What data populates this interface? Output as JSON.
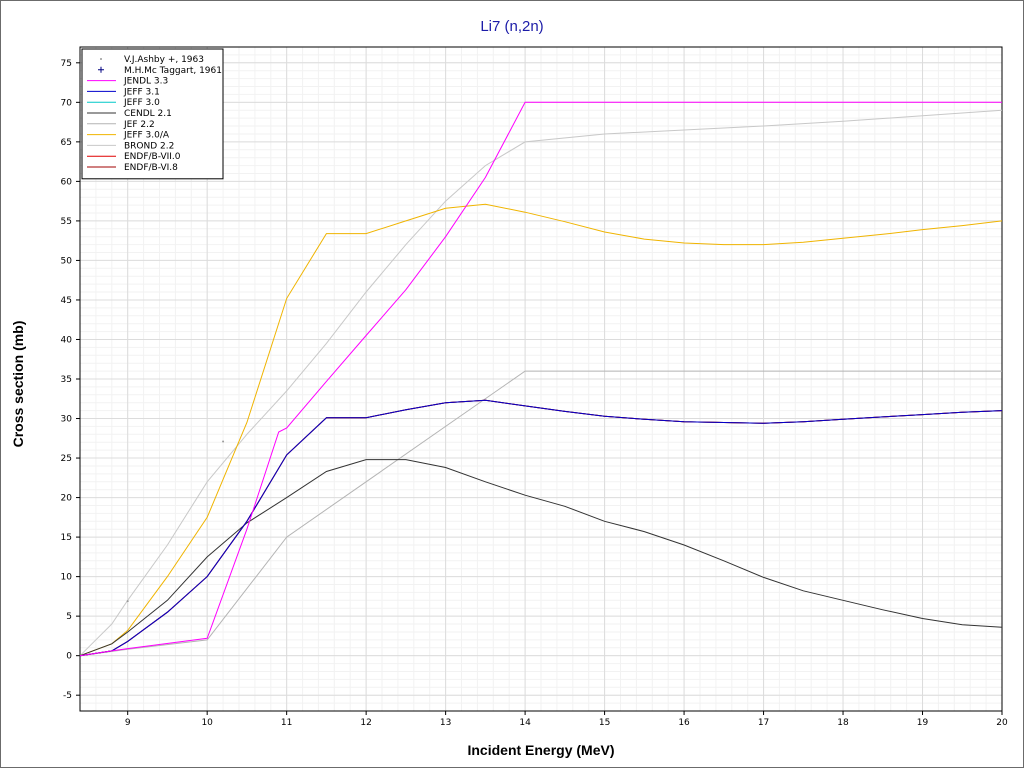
{
  "chart_data": {
    "type": "line",
    "title": "Li7 (n,2n)",
    "xlabel": "Incident Energy (MeV)",
    "ylabel": "Cross section (mb)",
    "xlim": [
      8.4,
      20
    ],
    "ylim": [
      -7,
      77
    ],
    "x_ticks": [
      9,
      10,
      11,
      12,
      13,
      14,
      15,
      16,
      17,
      18,
      19,
      20
    ],
    "y_ticks": [
      -5,
      0,
      5,
      10,
      15,
      20,
      25,
      30,
      35,
      40,
      45,
      50,
      55,
      60,
      65,
      70,
      75
    ],
    "grid": true,
    "legend_position": "top-left",
    "experimental": [
      {
        "name": "V.J.Ashby +, 1963",
        "marker": "dot",
        "color": "#999999",
        "points": [
          [
            9.0,
            6.9
          ],
          [
            10.2,
            27.1
          ]
        ]
      },
      {
        "name": "M.H.Mc Taggart, 1961",
        "marker": "plus",
        "color": "#000080",
        "points": []
      }
    ],
    "series": [
      {
        "name": "JENDL 3.3",
        "color": "#ff00ff",
        "x": [
          8.4,
          8.8,
          9.0,
          10.0,
          10.5,
          10.9,
          11.0,
          11.5,
          12.0,
          12.5,
          13.0,
          13.5,
          14.0,
          20.0
        ],
        "y": [
          0,
          0.6,
          0.9,
          2.2,
          16.0,
          28.3,
          28.8,
          34.7,
          40.5,
          46.3,
          53.0,
          60.5,
          70.0,
          70.0
        ]
      },
      {
        "name": "JEFF 3.1",
        "color": "#0000cc",
        "x": [
          8.4,
          8.8,
          9.0,
          9.5,
          10.0,
          10.5,
          11.0,
          11.5,
          12.0,
          12.5,
          13.0,
          13.5,
          14.0,
          14.5,
          15.0,
          15.5,
          16.0,
          16.5,
          17.0,
          17.5,
          18.0,
          18.5,
          19.0,
          19.5,
          20.0
        ],
        "y": [
          0,
          0.6,
          1.8,
          5.5,
          10.0,
          17.0,
          25.4,
          30.1,
          30.1,
          31.1,
          32.0,
          32.3,
          31.6,
          30.9,
          30.3,
          29.9,
          29.6,
          29.5,
          29.4,
          29.6,
          29.9,
          30.2,
          30.5,
          30.8,
          31.0
        ]
      },
      {
        "name": "JEFF 3.0",
        "color": "#00c8c8",
        "x": [
          8.4,
          8.8,
          9.0,
          9.5,
          10.0,
          10.5,
          11.0,
          11.5,
          12.0,
          12.5,
          13.0,
          13.5,
          14.0,
          14.5,
          15.0,
          15.5,
          16.0,
          16.5,
          17.0,
          17.5,
          18.0,
          18.5,
          19.0,
          19.5,
          20.0
        ],
        "y": [
          0,
          0.6,
          1.8,
          5.5,
          10.0,
          17.0,
          25.4,
          30.1,
          30.1,
          31.1,
          32.0,
          32.3,
          31.6,
          30.9,
          30.3,
          29.9,
          29.6,
          29.5,
          29.4,
          29.6,
          29.9,
          30.2,
          30.5,
          30.8,
          31.0
        ]
      },
      {
        "name": "CENDL 2.1",
        "color": "#333333",
        "x": [
          8.4,
          8.8,
          9.0,
          9.5,
          10.0,
          10.5,
          11.0,
          11.5,
          12.0,
          12.5,
          13.0,
          13.5,
          14.0,
          14.5,
          15.0,
          15.5,
          16.0,
          16.5,
          17.0,
          17.5,
          18.0,
          18.5,
          19.0,
          19.5,
          20.0
        ],
        "y": [
          0,
          1.5,
          3.0,
          7.0,
          12.5,
          16.8,
          20.0,
          23.3,
          24.8,
          24.8,
          23.8,
          22.0,
          20.3,
          18.9,
          17.0,
          15.7,
          14.0,
          12.0,
          9.9,
          8.2,
          7.0,
          5.8,
          4.7,
          3.9,
          3.6
        ]
      },
      {
        "name": "JEF 2.2",
        "color": "#b4b4b4",
        "x": [
          8.4,
          9.0,
          10.0,
          11.0,
          12.0,
          13.0,
          14.0,
          15.0,
          20.0
        ],
        "y": [
          0,
          0.8,
          2.0,
          15.0,
          22.0,
          29.0,
          36.0,
          36.0,
          36.0
        ]
      },
      {
        "name": "JEFF 3.0/A",
        "color": "#f0b400",
        "x": [
          8.4,
          8.8,
          9.0,
          9.5,
          10.0,
          10.5,
          11.0,
          11.5,
          12.0,
          12.5,
          13.0,
          13.5,
          14.0,
          14.5,
          15.0,
          15.5,
          16.0,
          16.5,
          17.0,
          17.5,
          18.0,
          18.5,
          19.0,
          19.5,
          20.0
        ],
        "y": [
          0,
          1.5,
          3.2,
          10.0,
          17.5,
          29.5,
          45.2,
          53.4,
          53.4,
          55.0,
          56.6,
          57.1,
          56.1,
          54.9,
          53.6,
          52.7,
          52.2,
          52.0,
          52.0,
          52.3,
          52.8,
          53.3,
          53.9,
          54.4,
          55.0
        ]
      },
      {
        "name": "BROND 2.2",
        "color": "#c8c8c8",
        "x": [
          8.4,
          8.8,
          9.0,
          9.5,
          10.0,
          10.5,
          11.0,
          11.5,
          12.0,
          12.5,
          13.0,
          13.5,
          14.0,
          15.0,
          16.0,
          17.0,
          18.0,
          19.0,
          20.0
        ],
        "y": [
          0,
          4.0,
          7.0,
          14.0,
          22.0,
          28.0,
          33.5,
          39.5,
          46.0,
          52.0,
          57.5,
          62.0,
          65.0,
          66.0,
          66.5,
          67.0,
          67.6,
          68.3,
          69.0
        ]
      },
      {
        "name": "ENDF/B-VII.0",
        "color": "#e00000",
        "x": [
          8.4,
          8.8,
          9.0,
          9.5,
          10.0,
          10.5,
          11.0,
          11.5,
          12.0,
          12.5,
          13.0,
          13.5,
          14.0,
          14.5,
          15.0,
          15.5,
          16.0,
          16.5,
          17.0,
          17.5,
          18.0,
          18.5,
          19.0,
          19.5,
          20.0
        ],
        "y": [
          0,
          0.6,
          1.8,
          5.5,
          10.0,
          17.0,
          25.4,
          30.1,
          30.1,
          31.1,
          32.0,
          32.3,
          31.6,
          30.9,
          30.3,
          29.9,
          29.6,
          29.5,
          29.4,
          29.6,
          29.9,
          30.2,
          30.5,
          30.8,
          31.0
        ]
      },
      {
        "name": "ENDF/B-VI.8",
        "color": "#a00000",
        "x": [
          8.4,
          8.8,
          9.0,
          9.5,
          10.0,
          10.5,
          11.0,
          11.5,
          12.0,
          12.5,
          13.0,
          13.5,
          14.0,
          14.5,
          15.0,
          15.5,
          16.0,
          16.5,
          17.0,
          17.5,
          18.0,
          18.5,
          19.0,
          19.5,
          20.0
        ],
        "y": [
          0,
          0.6,
          1.8,
          5.5,
          10.0,
          17.0,
          25.4,
          30.1,
          30.1,
          31.1,
          32.0,
          32.3,
          31.6,
          30.9,
          30.3,
          29.9,
          29.6,
          29.5,
          29.4,
          29.6,
          29.9,
          30.2,
          30.5,
          30.8,
          31.0
        ]
      }
    ]
  }
}
